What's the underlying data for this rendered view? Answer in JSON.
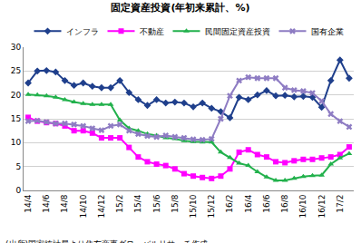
{
  "chart_data": {
    "type": "line",
    "title": "固定資産投資(年初来累計、%)",
    "annotations": [
      "(出所)国家統計局より住友商事グローバルリサーチ作成"
    ],
    "categories": [
      "14/4",
      null,
      "14/6",
      null,
      "14/8",
      null,
      "14/10",
      null,
      "14/12",
      null,
      "15/2",
      null,
      "15/4",
      null,
      "15/6",
      null,
      "15/8",
      null,
      "15/10",
      null,
      "15/12",
      null,
      "16/2",
      null,
      "16/4",
      null,
      "16/6",
      null,
      "16/8",
      null,
      "16/10",
      null,
      "16/12",
      null,
      "17/2",
      null
    ],
    "series": [
      {
        "name": "インフラ",
        "color": "#1f3f8c",
        "marker": "diamond",
        "line_style": "solid",
        "values": [
          22.5,
          25,
          25.1,
          24.8,
          23,
          22,
          22.5,
          21.8,
          21.5,
          21.5,
          23,
          20.5,
          19,
          17.8,
          19,
          18.3,
          18.5,
          18.3,
          17.5,
          18.3,
          17.2,
          16.5,
          15.2,
          19.5,
          19,
          20,
          20.9,
          19.8,
          19.9,
          19.6,
          19.7,
          19.5,
          17.4,
          23,
          27.3,
          23.5
        ]
      },
      {
        "name": "不動産",
        "color": "#ff00ff",
        "marker": "square",
        "line_style": "solid",
        "values": [
          15.3,
          14.5,
          14.2,
          14,
          13.5,
          12.5,
          12.5,
          12,
          11,
          11,
          11,
          9,
          7,
          6,
          5.5,
          5.2,
          4.5,
          3.5,
          3,
          2.7,
          2.5,
          3,
          4.5,
          8,
          8.5,
          7.5,
          7,
          6,
          5.8,
          6.2,
          6.5,
          6.5,
          6.8,
          7,
          7.5,
          9.1
        ]
      },
      {
        "name": "民間固定資産投資",
        "color": "#22b14c",
        "marker": "triangle-up",
        "line_style": "solid",
        "values": [
          20.1,
          20,
          19.8,
          19.5,
          19,
          18.5,
          18.2,
          18,
          18,
          18,
          14.7,
          13,
          12.5,
          11.8,
          11.5,
          11,
          10.8,
          10.4,
          10.2,
          10.1,
          10.1,
          8,
          6.9,
          5.7,
          5.2,
          3.9,
          2.8,
          2.1,
          2.1,
          2.5,
          2.9,
          3.1,
          3.2,
          5.5,
          6.8,
          7.7
        ]
      },
      {
        "name": "国有企業",
        "color": "#8e7cc3",
        "marker": "x",
        "line_style": "solid",
        "values": [
          14.5,
          14.6,
          14.3,
          14,
          14,
          13.8,
          13.5,
          13,
          12.6,
          13.5,
          13.8,
          12.5,
          11.8,
          11.4,
          11.2,
          11.5,
          11.2,
          11,
          10.7,
          10.6,
          10.8,
          15,
          19.8,
          23,
          23.7,
          23.5,
          23.5,
          23.5,
          21.5,
          21,
          20.8,
          20.4,
          18.7,
          16,
          14.5,
          13.3
        ]
      }
    ],
    "ylim": [
      0,
      30
    ],
    "yticks": [
      0,
      5,
      10,
      15,
      20,
      25,
      30
    ],
    "grid": true,
    "legend": "top"
  }
}
